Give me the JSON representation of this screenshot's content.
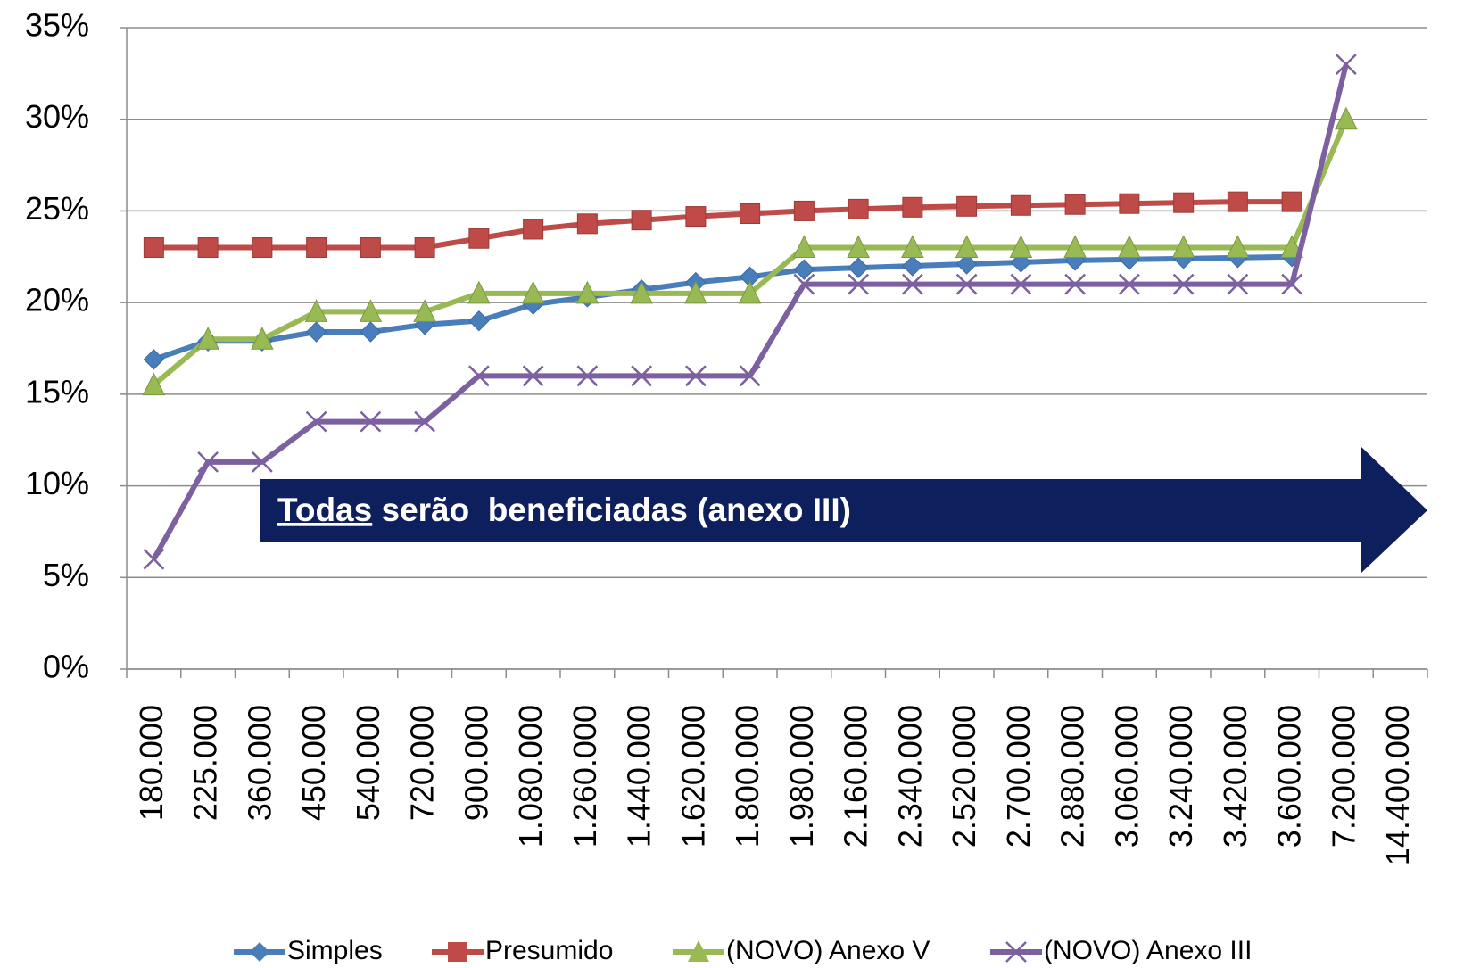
{
  "chart_data": {
    "type": "line",
    "categories": [
      "180.000",
      "225.000",
      "360.000",
      "450.000",
      "540.000",
      "720.000",
      "900.000",
      "1.080.000",
      "1.260.000",
      "1.440.000",
      "1.620.000",
      "1.800.000",
      "1.980.000",
      "2.160.000",
      "2.340.000",
      "2.520.000",
      "2.700.000",
      "2.880.000",
      "3.060.000",
      "3.240.000",
      "3.420.000",
      "3.600.000",
      "7.200.000",
      "14.400.000"
    ],
    "series": [
      {
        "name": "Simples",
        "color": "#4a7ebb",
        "marker": "diamond",
        "values": [
          16.9,
          17.9,
          17.9,
          18.4,
          18.4,
          18.8,
          19.0,
          19.9,
          20.3,
          20.7,
          21.1,
          21.4,
          21.8,
          21.9,
          22.0,
          22.1,
          22.2,
          22.3,
          22.35,
          22.4,
          22.45,
          22.5,
          null,
          null
        ]
      },
      {
        "name": "Presumido",
        "color": "#be4b48",
        "marker": "square",
        "values": [
          23,
          23,
          23,
          23,
          23,
          23,
          23.5,
          24.0,
          24.3,
          24.5,
          24.7,
          24.85,
          25.0,
          25.1,
          25.2,
          25.25,
          25.3,
          25.35,
          25.4,
          25.45,
          25.5,
          25.5,
          null,
          null
        ]
      },
      {
        "name": "(NOVO) Anexo V",
        "color": "#98b954",
        "marker": "triangle",
        "values": [
          15.5,
          18,
          18,
          19.5,
          19.5,
          19.5,
          20.5,
          20.5,
          20.5,
          20.5,
          20.5,
          20.5,
          23,
          23,
          23,
          23,
          23,
          23,
          23,
          23,
          23,
          23,
          30,
          null
        ]
      },
      {
        "name": "(NOVO) Anexo III",
        "color": "#7d60a0",
        "marker": "x",
        "values": [
          6,
          11.3,
          11.3,
          13.5,
          13.5,
          13.5,
          16,
          16,
          16,
          16,
          16,
          16,
          21,
          21,
          21,
          21,
          21,
          21,
          21,
          21,
          21,
          21,
          33,
          null
        ]
      }
    ],
    "ylim": [
      0,
      35
    ],
    "yticks": [
      {
        "value": 0,
        "label": "0%"
      },
      {
        "value": 5,
        "label": "5%"
      },
      {
        "value": 10,
        "label": "10%"
      },
      {
        "value": 15,
        "label": "15%"
      },
      {
        "value": 20,
        "label": "20%"
      },
      {
        "value": 25,
        "label": "25%"
      },
      {
        "value": 30,
        "label": "30%"
      },
      {
        "value": 35,
        "label": "35%"
      }
    ],
    "grid": true,
    "legend": "bottom",
    "annotation": {
      "underlined": "Todas",
      "rest": "serão  beneficiadas (anexo III)"
    }
  }
}
